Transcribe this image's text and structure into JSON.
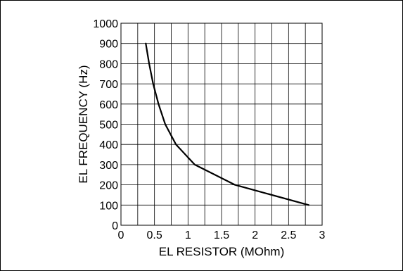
{
  "chart_data": {
    "type": "line",
    "title": "",
    "xlabel": "EL RESISTOR (MOhm)",
    "ylabel": "EL FREQUENCY (Hz)",
    "xlim": [
      0,
      3
    ],
    "ylim": [
      0,
      1000
    ],
    "x_ticks": [
      0,
      0.5,
      1,
      1.5,
      2,
      2.5,
      3
    ],
    "x_tick_labels": [
      "0",
      "0.5",
      "1",
      "1.5",
      "2",
      "2.5",
      "3"
    ],
    "y_ticks": [
      0,
      100,
      200,
      300,
      400,
      500,
      600,
      700,
      800,
      900,
      1000
    ],
    "y_tick_labels": [
      "0",
      "100",
      "200",
      "300",
      "400",
      "500",
      "600",
      "700",
      "800",
      "900",
      "1000"
    ],
    "grid": true,
    "x_minor_step": 0.25,
    "series": [
      {
        "x": [
          0.37,
          0.42,
          0.48,
          0.56,
          0.66,
          0.82,
          1.1,
          1.7,
          2.8
        ],
        "y": [
          900,
          800,
          700,
          600,
          500,
          400,
          300,
          200,
          100
        ]
      }
    ]
  }
}
